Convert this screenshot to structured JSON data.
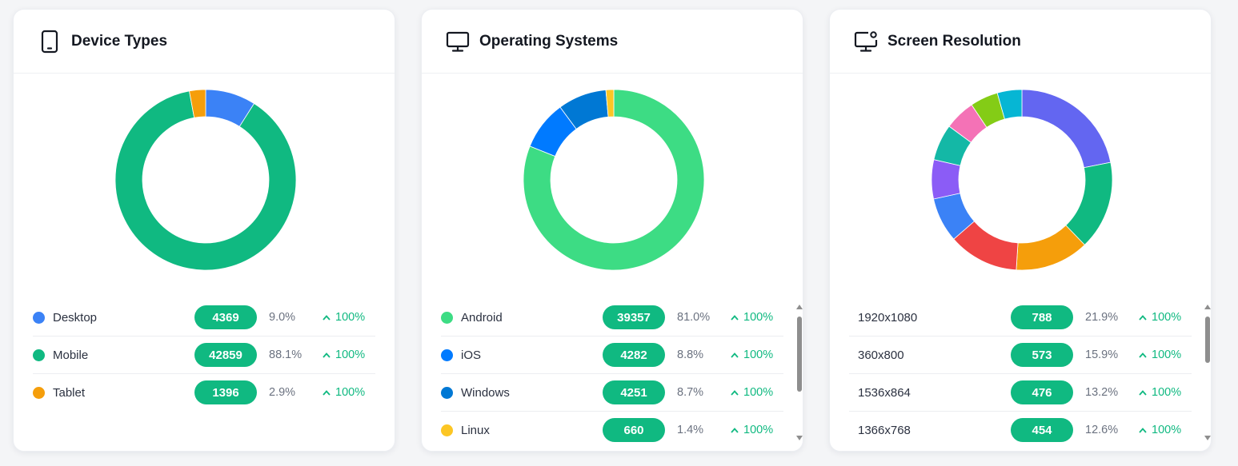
{
  "colors": {
    "accent": "#10b981",
    "desktop": "#3b82f6",
    "mobile": "#10b981",
    "tablet": "#f59e0b",
    "android": "#3ddc84",
    "ios": "#007aff",
    "windows": "#0078d4",
    "linux": "#fcc624"
  },
  "cards": [
    {
      "title": "Device Types",
      "icon": "tablet-icon",
      "items": [
        {
          "label": "Desktop",
          "count": "4369",
          "pct": "9.0%",
          "change": "100%",
          "color": "#3b82f6"
        },
        {
          "label": "Mobile",
          "count": "42859",
          "pct": "88.1%",
          "change": "100%",
          "color": "#10b981"
        },
        {
          "label": "Tablet",
          "count": "1396",
          "pct": "2.9%",
          "change": "100%",
          "color": "#f59e0b"
        }
      ]
    },
    {
      "title": "Operating Systems",
      "icon": "monitor-icon",
      "items": [
        {
          "label": "Android",
          "count": "39357",
          "pct": "81.0%",
          "change": "100%",
          "color": "#3ddc84"
        },
        {
          "label": "iOS",
          "count": "4282",
          "pct": "8.8%",
          "change": "100%",
          "color": "#007aff"
        },
        {
          "label": "Windows",
          "count": "4251",
          "pct": "8.7%",
          "change": "100%",
          "color": "#0078d4"
        },
        {
          "label": "Linux",
          "count": "660",
          "pct": "1.4%",
          "change": "100%",
          "color": "#fcc624"
        }
      ]
    },
    {
      "title": "Screen Resolution",
      "icon": "monitor-settings-icon",
      "items": [
        {
          "label": "1920x1080",
          "count": "788",
          "pct": "21.9%",
          "change": "100%"
        },
        {
          "label": "360x800",
          "count": "573",
          "pct": "15.9%",
          "change": "100%"
        },
        {
          "label": "1536x864",
          "count": "476",
          "pct": "13.2%",
          "change": "100%"
        },
        {
          "label": "1366x768",
          "count": "454",
          "pct": "12.6%",
          "change": "100%"
        }
      ]
    }
  ],
  "chart_data": [
    {
      "type": "pie",
      "categories": [
        "Desktop",
        "Mobile",
        "Tablet"
      ],
      "values": [
        9.0,
        88.1,
        2.9
      ],
      "colors": [
        "#3b82f6",
        "#10b981",
        "#f59e0b"
      ]
    },
    {
      "type": "pie",
      "categories": [
        "Android",
        "iOS",
        "Windows",
        "Linux"
      ],
      "values": [
        81.0,
        8.8,
        8.7,
        1.4
      ],
      "colors": [
        "#3ddc84",
        "#007aff",
        "#0078d4",
        "#fcc624"
      ]
    },
    {
      "type": "pie",
      "categories": [
        "1920x1080",
        "360x800",
        "1536x864",
        "1366x768",
        "",
        "",
        "",
        "",
        "",
        ""
      ],
      "values": [
        21.9,
        15.9,
        13.2,
        12.6,
        8.0,
        7.0,
        6.5,
        5.5,
        5.0,
        4.4
      ],
      "colors": [
        "#6366f1",
        "#10b981",
        "#f59e0b",
        "#ef4444",
        "#3b82f6",
        "#8b5cf6",
        "#14b8a6",
        "#f472b6",
        "#84cc16",
        "#06b6d4"
      ]
    }
  ]
}
